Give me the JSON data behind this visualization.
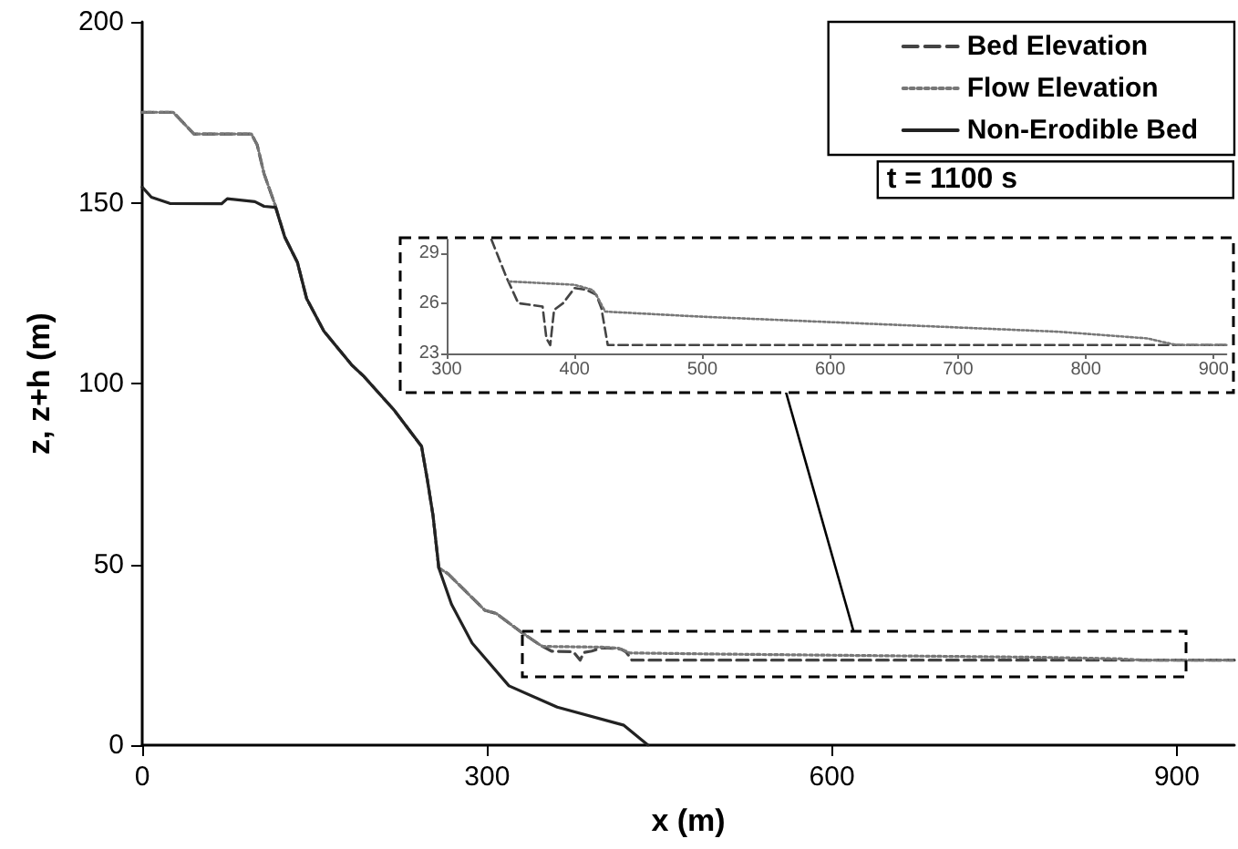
{
  "chart_data": [
    {
      "type": "line",
      "xlabel": "x (m)",
      "ylabel": "z, z+h (m)",
      "xlim": [
        0,
        950
      ],
      "ylim": [
        0,
        200
      ],
      "xticks": [
        0,
        300,
        600,
        900
      ],
      "yticks": [
        0,
        50,
        100,
        150,
        200
      ],
      "grid": false,
      "legend": "top right",
      "marker": "none",
      "annotations": [
        "t = 1100 s"
      ],
      "series": [
        {
          "name": "Bed Elevation",
          "color": "#444444",
          "line_style": "dashed",
          "x": [
            0,
            27,
            45,
            95,
            100,
            106,
            116,
            124,
            135,
            143,
            158,
            182,
            193,
            219,
            243,
            248,
            253,
            258,
            266,
            298,
            308,
            329,
            347,
            356,
            375,
            381,
            384,
            391,
            400,
            409,
            417,
            421,
            426,
            950
          ],
          "values": [
            175,
            175,
            169,
            169,
            166,
            158,
            149,
            140.5,
            133.5,
            123.5,
            114.5,
            105.2,
            101.9,
            92.7,
            82.6,
            73.4,
            63.4,
            49,
            47.4,
            37.3,
            36.4,
            31.4,
            27.5,
            26,
            25.8,
            23.5,
            25.6,
            26,
            26.9,
            26.8,
            26.5,
            25.7,
            23.5,
            23.5
          ]
        },
        {
          "name": "Flow Elevation",
          "color": "#777777",
          "line_style": "dotted",
          "x": [
            0,
            27,
            45,
            95,
            100,
            106,
            116,
            124,
            135,
            143,
            158,
            182,
            193,
            219,
            243,
            248,
            253,
            258,
            266,
            298,
            308,
            329,
            347,
            349,
            400,
            414,
            417,
            424,
            498,
            591,
            685,
            778,
            848,
            871,
            950
          ],
          "values": [
            175,
            175,
            169,
            169,
            166,
            158,
            149,
            140.5,
            133.5,
            123.5,
            114.5,
            105.2,
            101.9,
            92.7,
            82.6,
            73.4,
            63.4,
            49,
            47.4,
            37.3,
            36.4,
            31.4,
            27.5,
            27.3,
            27.1,
            26.8,
            26.5,
            25.5,
            25.2,
            24.9,
            24.6,
            24.3,
            23.9,
            23.5,
            23.5
          ]
        },
        {
          "name": "Non-Erodible Bed",
          "color": "#222222",
          "line_style": "solid",
          "x": [
            0,
            8,
            24,
            69,
            74,
            98,
            106,
            116,
            124,
            135,
            143,
            158,
            182,
            193,
            219,
            243,
            248,
            253,
            258,
            269,
            287,
            319,
            361,
            419,
            440
          ],
          "values": [
            154.3,
            151.5,
            149.8,
            149.7,
            151.1,
            150.3,
            149,
            148.7,
            140.5,
            133.5,
            123.5,
            114.5,
            105.2,
            101.9,
            92.7,
            82.6,
            73.4,
            63.4,
            49,
            39,
            28.2,
            16.4,
            10.5,
            5.5,
            0
          ]
        }
      ]
    },
    {
      "type": "line",
      "xlim": [
        300,
        910
      ],
      "ylim": [
        23,
        29.8
      ],
      "xticks": [
        300,
        400,
        500,
        600,
        700,
        800,
        900
      ],
      "yticks": [
        23,
        26,
        29
      ],
      "grid": false,
      "marker": "none",
      "series": [
        {
          "color": "#444444",
          "line_style": "dashed",
          "x": [
            335,
            347,
            356,
            375,
            378,
            381,
            384,
            391,
            400,
            409,
            417,
            421,
            426,
            910
          ],
          "values": [
            29.8,
            27.5,
            26,
            25.8,
            23.9,
            23.5,
            25.6,
            26,
            26.9,
            26.8,
            26.5,
            25.7,
            23.5,
            23.5
          ]
        },
        {
          "color": "#777777",
          "line_style": "dotted",
          "x": [
            349,
            400,
            414,
            417,
            424,
            498,
            591,
            685,
            778,
            848,
            871,
            910
          ],
          "values": [
            27.3,
            27.1,
            26.8,
            26.5,
            25.5,
            25.2,
            24.9,
            24.6,
            24.3,
            23.9,
            23.5,
            23.5
          ]
        }
      ]
    }
  ]
}
